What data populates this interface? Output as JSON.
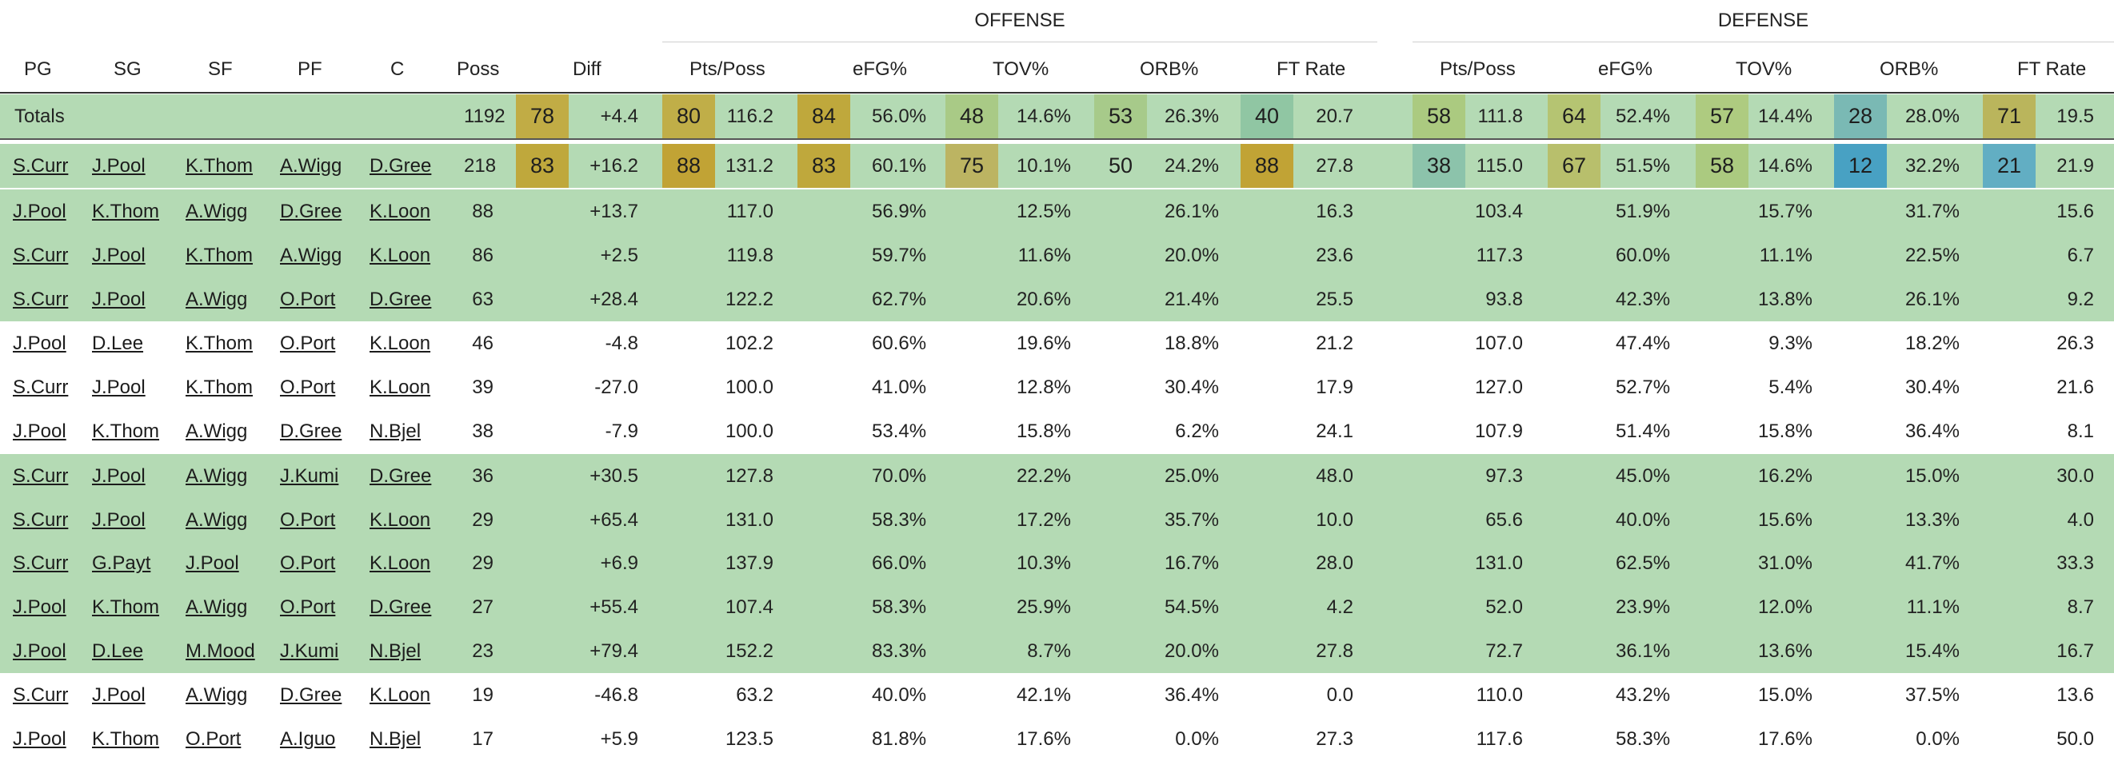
{
  "groups": {
    "offense": "OFFENSE",
    "defense": "DEFENSE"
  },
  "columns": {
    "pg": "PG",
    "sg": "SG",
    "sf": "SF",
    "pf": "PF",
    "c": "C",
    "poss": "Poss",
    "diff": "Diff",
    "o_pts": "Pts/Poss",
    "o_efg": "eFG%",
    "o_tov": "TOV%",
    "o_orb": "ORB%",
    "o_ft": "FT Rate",
    "d_pts": "Pts/Poss",
    "d_efg": "eFG%",
    "d_tov": "TOV%",
    "d_orb": "ORB%",
    "d_ft": "FT Rate"
  },
  "totals": {
    "label": "Totals",
    "poss": "1192",
    "diff_rank": "78",
    "diff": "+4.4",
    "o_pts_rank": "80",
    "o_pts": "116.2",
    "o_efg_rank": "84",
    "o_efg": "56.0%",
    "o_tov_rank": "48",
    "o_tov": "14.6%",
    "o_orb_rank": "53",
    "o_orb": "26.3%",
    "o_ft_rank": "40",
    "o_ft": "20.7",
    "d_pts_rank": "58",
    "d_pts": "111.8",
    "d_efg_rank": "64",
    "d_efg": "52.4%",
    "d_tov_rank": "57",
    "d_tov": "14.4%",
    "d_orb_rank": "28",
    "d_orb": "28.0%",
    "d_ft_rank": "71",
    "d_ft": "19.5"
  },
  "badge_colors": {
    "78": "#c1ac45",
    "80": "#c0ae48",
    "84": "#bfa83c",
    "48": "#a9ca86",
    "53": "#a7ca8a",
    "40": "#90c6a3",
    "58": "#abca80",
    "64": "#b5c472",
    "57": "#aecb80",
    "28": "#7ab9b4",
    "71": "#bab55c",
    "83": "#bfa83c",
    "88": "#c1a335",
    "75": "#bcb462",
    "50": "#b4dab4",
    "38": "#8cc3ab",
    "67": "#b8bf6c",
    "12": "#48a1c3",
    "21": "#62aec3"
  },
  "lineups": [
    {
      "pg": "S.Curr",
      "sg": "J.Pool",
      "sf": "K.Thom",
      "pf": "A.Wigg",
      "c": "D.Gree",
      "poss": "218",
      "diff_rank": "83",
      "diff": "+16.2",
      "o_pts_rank": "88",
      "o_pts": "131.2",
      "o_efg_rank": "83",
      "o_efg": "60.1%",
      "o_tov_rank": "75",
      "o_tov": "10.1%",
      "o_orb_rank": "50",
      "o_orb": "24.2%",
      "o_ft_rank": "88",
      "o_ft": "27.8",
      "d_pts_rank": "38",
      "d_pts": "115.0",
      "d_efg_rank": "67",
      "d_efg": "51.5%",
      "d_tov_rank": "58",
      "d_tov": "14.6%",
      "d_orb_rank": "12",
      "d_orb": "32.2%",
      "d_ft_rank": "21",
      "d_ft": "21.9",
      "green": true
    },
    {
      "pg": "J.Pool",
      "sg": "K.Thom",
      "sf": "A.Wigg",
      "pf": "D.Gree",
      "c": "K.Loon",
      "poss": "88",
      "diff": "+13.7",
      "o_pts": "117.0",
      "o_efg": "56.9%",
      "o_tov": "12.5%",
      "o_orb": "26.1%",
      "o_ft": "16.3",
      "d_pts": "103.4",
      "d_efg": "51.9%",
      "d_tov": "15.7%",
      "d_orb": "31.7%",
      "d_ft": "15.6",
      "green": true
    },
    {
      "pg": "S.Curr",
      "sg": "J.Pool",
      "sf": "K.Thom",
      "pf": "A.Wigg",
      "c": "K.Loon",
      "poss": "86",
      "diff": "+2.5",
      "o_pts": "119.8",
      "o_efg": "59.7%",
      "o_tov": "11.6%",
      "o_orb": "20.0%",
      "o_ft": "23.6",
      "d_pts": "117.3",
      "d_efg": "60.0%",
      "d_tov": "11.1%",
      "d_orb": "22.5%",
      "d_ft": "6.7",
      "green": true
    },
    {
      "pg": "S.Curr",
      "sg": "J.Pool",
      "sf": "A.Wigg",
      "pf": "O.Port",
      "c": "D.Gree",
      "poss": "63",
      "diff": "+28.4",
      "o_pts": "122.2",
      "o_efg": "62.7%",
      "o_tov": "20.6%",
      "o_orb": "21.4%",
      "o_ft": "25.5",
      "d_pts": "93.8",
      "d_efg": "42.3%",
      "d_tov": "13.8%",
      "d_orb": "26.1%",
      "d_ft": "9.2",
      "green": true
    },
    {
      "pg": "J.Pool",
      "sg": "D.Lee",
      "sf": "K.Thom",
      "pf": "O.Port",
      "c": "K.Loon",
      "poss": "46",
      "diff": "-4.8",
      "o_pts": "102.2",
      "o_efg": "60.6%",
      "o_tov": "19.6%",
      "o_orb": "18.8%",
      "o_ft": "21.2",
      "d_pts": "107.0",
      "d_efg": "47.4%",
      "d_tov": "9.3%",
      "d_orb": "18.2%",
      "d_ft": "26.3",
      "green": false
    },
    {
      "pg": "S.Curr",
      "sg": "J.Pool",
      "sf": "K.Thom",
      "pf": "O.Port",
      "c": "K.Loon",
      "poss": "39",
      "diff": "-27.0",
      "o_pts": "100.0",
      "o_efg": "41.0%",
      "o_tov": "12.8%",
      "o_orb": "30.4%",
      "o_ft": "17.9",
      "d_pts": "127.0",
      "d_efg": "52.7%",
      "d_tov": "5.4%",
      "d_orb": "30.4%",
      "d_ft": "21.6",
      "green": false
    },
    {
      "pg": "J.Pool",
      "sg": "K.Thom",
      "sf": "A.Wigg",
      "pf": "D.Gree",
      "c": "N.Bjel",
      "poss": "38",
      "diff": "-7.9",
      "o_pts": "100.0",
      "o_efg": "53.4%",
      "o_tov": "15.8%",
      "o_orb": "6.2%",
      "o_ft": "24.1",
      "d_pts": "107.9",
      "d_efg": "51.4%",
      "d_tov": "15.8%",
      "d_orb": "36.4%",
      "d_ft": "8.1",
      "green": false
    },
    {
      "pg": "S.Curr",
      "sg": "J.Pool",
      "sf": "A.Wigg",
      "pf": "J.Kumi",
      "c": "D.Gree",
      "poss": "36",
      "diff": "+30.5",
      "o_pts": "127.8",
      "o_efg": "70.0%",
      "o_tov": "22.2%",
      "o_orb": "25.0%",
      "o_ft": "48.0",
      "d_pts": "97.3",
      "d_efg": "45.0%",
      "d_tov": "16.2%",
      "d_orb": "15.0%",
      "d_ft": "30.0",
      "green": true
    },
    {
      "pg": "S.Curr",
      "sg": "J.Pool",
      "sf": "A.Wigg",
      "pf": "O.Port",
      "c": "K.Loon",
      "poss": "29",
      "diff": "+65.4",
      "o_pts": "131.0",
      "o_efg": "58.3%",
      "o_tov": "17.2%",
      "o_orb": "35.7%",
      "o_ft": "10.0",
      "d_pts": "65.6",
      "d_efg": "40.0%",
      "d_tov": "15.6%",
      "d_orb": "13.3%",
      "d_ft": "4.0",
      "green": true
    },
    {
      "pg": "S.Curr",
      "sg": "G.Payt",
      "sf": "J.Pool",
      "pf": "O.Port",
      "c": "K.Loon",
      "poss": "29",
      "diff": "+6.9",
      "o_pts": "137.9",
      "o_efg": "66.0%",
      "o_tov": "10.3%",
      "o_orb": "16.7%",
      "o_ft": "28.0",
      "d_pts": "131.0",
      "d_efg": "62.5%",
      "d_tov": "31.0%",
      "d_orb": "41.7%",
      "d_ft": "33.3",
      "green": true
    },
    {
      "pg": "J.Pool",
      "sg": "K.Thom",
      "sf": "A.Wigg",
      "pf": "O.Port",
      "c": "D.Gree",
      "poss": "27",
      "diff": "+55.4",
      "o_pts": "107.4",
      "o_efg": "58.3%",
      "o_tov": "25.9%",
      "o_orb": "54.5%",
      "o_ft": "4.2",
      "d_pts": "52.0",
      "d_efg": "23.9%",
      "d_tov": "12.0%",
      "d_orb": "11.1%",
      "d_ft": "8.7",
      "green": true
    },
    {
      "pg": "J.Pool",
      "sg": "D.Lee",
      "sf": "M.Mood",
      "pf": "J.Kumi",
      "c": "N.Bjel",
      "poss": "23",
      "diff": "+79.4",
      "o_pts": "152.2",
      "o_efg": "83.3%",
      "o_tov": "8.7%",
      "o_orb": "20.0%",
      "o_ft": "27.8",
      "d_pts": "72.7",
      "d_efg": "36.1%",
      "d_tov": "13.6%",
      "d_orb": "15.4%",
      "d_ft": "16.7",
      "green": true
    },
    {
      "pg": "S.Curr",
      "sg": "J.Pool",
      "sf": "A.Wigg",
      "pf": "D.Gree",
      "c": "K.Loon",
      "poss": "19",
      "diff": "-46.8",
      "o_pts": "63.2",
      "o_efg": "40.0%",
      "o_tov": "42.1%",
      "o_orb": "36.4%",
      "o_ft": "0.0",
      "d_pts": "110.0",
      "d_efg": "43.2%",
      "d_tov": "15.0%",
      "d_orb": "37.5%",
      "d_ft": "13.6",
      "green": false
    },
    {
      "pg": "J.Pool",
      "sg": "K.Thom",
      "sf": "O.Port",
      "pf": "A.Iguo",
      "c": "N.Bjel",
      "poss": "17",
      "diff": "+5.9",
      "o_pts": "123.5",
      "o_efg": "81.8%",
      "o_tov": "17.6%",
      "o_orb": "0.0%",
      "o_ft": "27.3",
      "d_pts": "117.6",
      "d_efg": "58.3%",
      "d_tov": "17.6%",
      "d_orb": "0.0%",
      "d_ft": "50.0",
      "green": false
    }
  ]
}
